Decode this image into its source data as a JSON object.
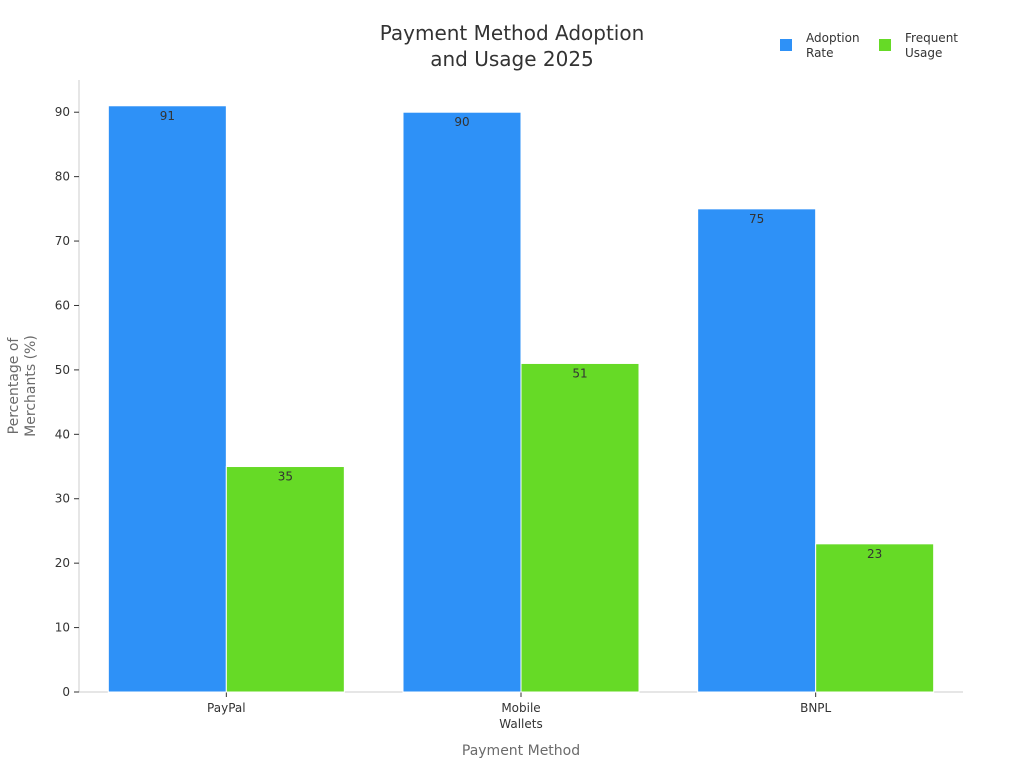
{
  "chart_data": {
    "type": "bar",
    "title": [
      "Payment Method Adoption",
      "and Usage 2025"
    ],
    "xlabel": "Payment Method",
    "ylabel": [
      "Percentage of",
      "Merchants (%)"
    ],
    "categories": [
      [
        "PayPal"
      ],
      [
        "Mobile",
        "Wallets"
      ],
      [
        "BNPL"
      ]
    ],
    "series": [
      {
        "name": [
          "Adoption",
          "Rate"
        ],
        "color": "#2e91f7",
        "values": [
          91,
          90,
          75
        ]
      },
      {
        "name": [
          "Frequent",
          "Usage"
        ],
        "color": "#66da26",
        "values": [
          35,
          51,
          23
        ]
      }
    ],
    "ylim": [
      0,
      95
    ],
    "yticks": [
      0,
      10,
      20,
      30,
      40,
      50,
      60,
      70,
      80,
      90
    ],
    "grid": false,
    "legend_position": "top-right",
    "data_labels": true
  }
}
